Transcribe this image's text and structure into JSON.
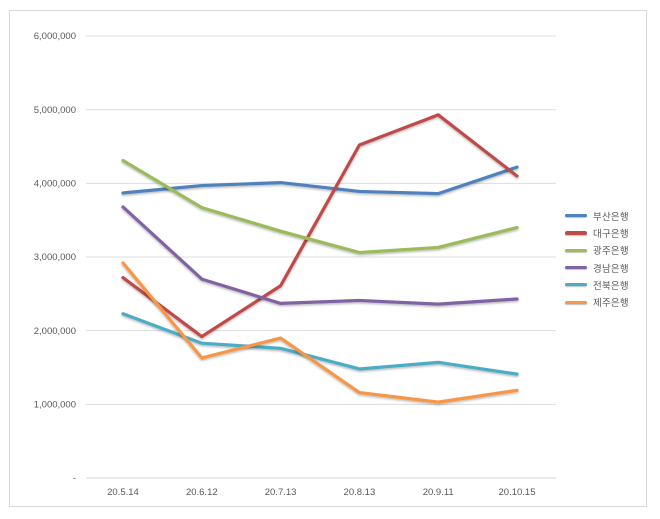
{
  "chart_data": {
    "type": "line",
    "title": "",
    "xlabel": "",
    "ylabel": "",
    "categories": [
      "20.5.14",
      "20.6.12",
      "20.7.13",
      "20.8.13",
      "20.9.11",
      "20.10.15"
    ],
    "series": [
      {
        "name": "부산은행",
        "color": "#4F81BD",
        "values": [
          3870000,
          3970000,
          4010000,
          3890000,
          3860000,
          4220000
        ]
      },
      {
        "name": "대구은행",
        "color": "#BE4B48",
        "values": [
          2720000,
          1920000,
          2610000,
          4520000,
          4930000,
          4100000
        ]
      },
      {
        "name": "광주은행",
        "color": "#9BBB59",
        "values": [
          4310000,
          3670000,
          3350000,
          3060000,
          3130000,
          3400000
        ]
      },
      {
        "name": "경남은행",
        "color": "#8064A2",
        "values": [
          3680000,
          2700000,
          2370000,
          2410000,
          2360000,
          2430000
        ]
      },
      {
        "name": "전북은행",
        "color": "#4BACC6",
        "values": [
          2230000,
          1830000,
          1760000,
          1480000,
          1570000,
          1410000
        ]
      },
      {
        "name": "제주은행",
        "color": "#F79646",
        "values": [
          2920000,
          1630000,
          1900000,
          1160000,
          1030000,
          1190000
        ]
      }
    ],
    "y_axis": {
      "min": 0,
      "max": 6000000,
      "step": 1000000,
      "tick_labels": [
        "-",
        "1,000,000",
        "2,000,000",
        "3,000,000",
        "4,000,000",
        "5,000,000",
        "6,000,000"
      ]
    },
    "x_axis": {
      "tick_labels": [
        "20.5.14",
        "20.6.12",
        "20.7.13",
        "20.8.13",
        "20.9.11",
        "20.10.15"
      ]
    },
    "legend_position": "right",
    "grid": true
  },
  "style": {
    "grid_color": "#dddddd",
    "axis_color": "#d3d3d3",
    "tick_text_color": "#595959",
    "frame_color": "#d9d9d9",
    "background": "#ffffff"
  }
}
